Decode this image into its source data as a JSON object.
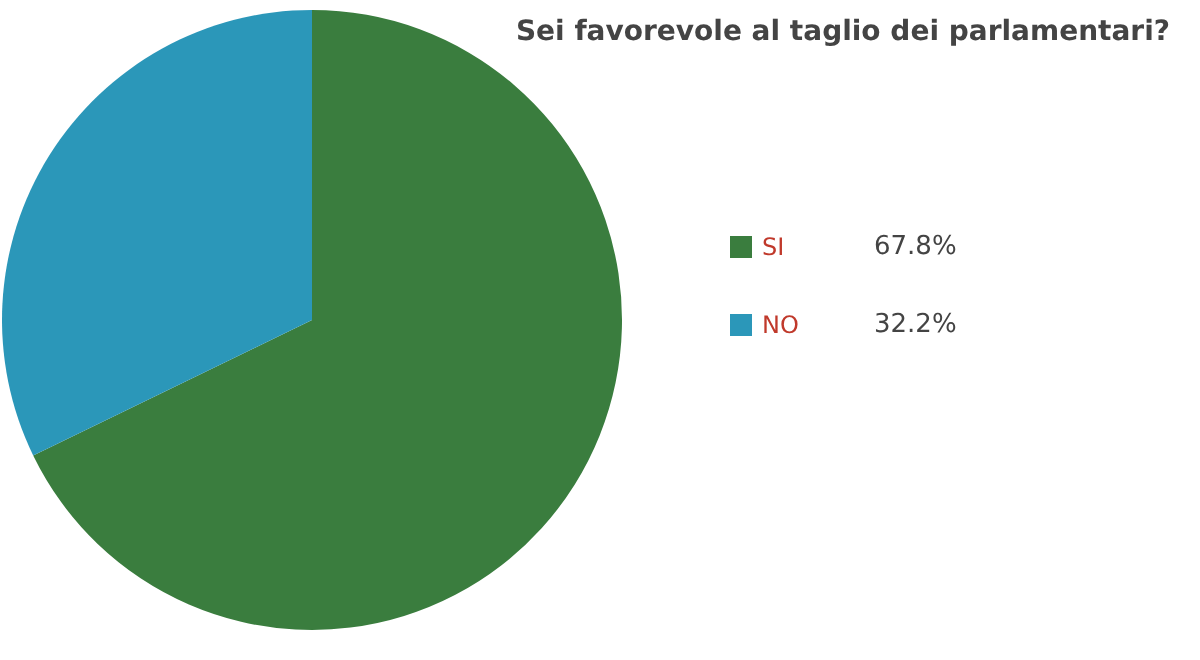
{
  "chart_data": {
    "type": "pie",
    "title": "Sei favorevole al taglio dei parlamentari?",
    "categories": [
      "SI",
      "NO"
    ],
    "values": [
      67.8,
      32.2
    ],
    "colors": [
      "#3a7d3e",
      "#2b97b9"
    ],
    "value_labels": [
      "67.8%",
      "32.2%"
    ],
    "legend": "right"
  }
}
